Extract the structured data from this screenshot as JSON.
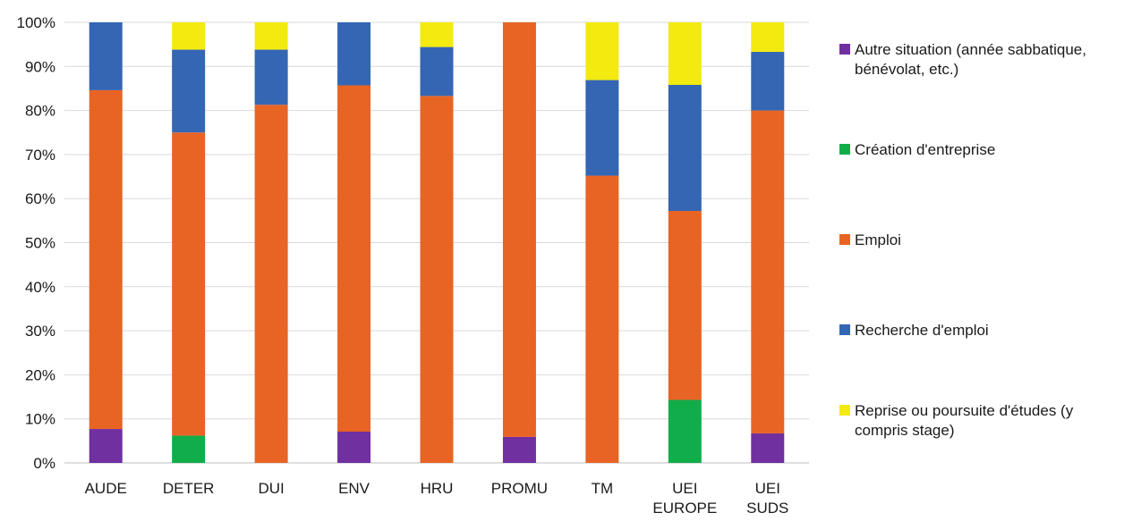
{
  "chart_data": {
    "type": "bar",
    "stacked": true,
    "percent": true,
    "categories": [
      [
        "AUDE"
      ],
      [
        "DETER"
      ],
      [
        "DUI"
      ],
      [
        "ENV"
      ],
      [
        "HRU"
      ],
      [
        "PROMU"
      ],
      [
        "TM"
      ],
      [
        "UEI",
        "EUROPE"
      ],
      [
        "UEI",
        "SUDS"
      ]
    ],
    "ylim": [
      0,
      100
    ],
    "yticks": [
      "0%",
      "10%",
      "20%",
      "30%",
      "40%",
      "50%",
      "60%",
      "70%",
      "80%",
      "90%",
      "100%"
    ],
    "grid": true,
    "legend_position": "right",
    "series": [
      {
        "name": "Autre situation (année sabbatique, bénévolat, etc.)",
        "name_lines": [
          "Autre situation (année sabbatique,",
          "bénévolat, etc.)"
        ],
        "color": "#7030a0",
        "values": [
          7.7,
          0,
          0,
          7.1,
          0,
          5.9,
          0,
          0,
          6.7
        ]
      },
      {
        "name": "Création d'entreprise",
        "name_lines": [
          "Création d'entreprise"
        ],
        "color": "#12ad4b",
        "values": [
          0,
          6.2,
          0,
          0,
          0,
          0,
          0,
          14.3,
          0
        ]
      },
      {
        "name": "Emploi",
        "name_lines": [
          "Emploi"
        ],
        "color": "#e86424",
        "values": [
          76.9,
          68.8,
          81.3,
          78.6,
          83.3,
          94.1,
          65.2,
          42.9,
          73.3
        ]
      },
      {
        "name": "Recherche d'emploi",
        "name_lines": [
          "Recherche d'emploi"
        ],
        "color": "#3466b4",
        "values": [
          15.4,
          18.8,
          12.5,
          14.3,
          11.1,
          0,
          21.7,
          28.6,
          13.3
        ]
      },
      {
        "name": "Reprise ou poursuite d'études (y compris stage)",
        "name_lines": [
          "Reprise ou poursuite d'études (y",
          "compris stage)"
        ],
        "color": "#f3ea10",
        "values": [
          0,
          6.2,
          6.2,
          0,
          5.6,
          0,
          13.1,
          14.2,
          6.7
        ]
      }
    ]
  }
}
